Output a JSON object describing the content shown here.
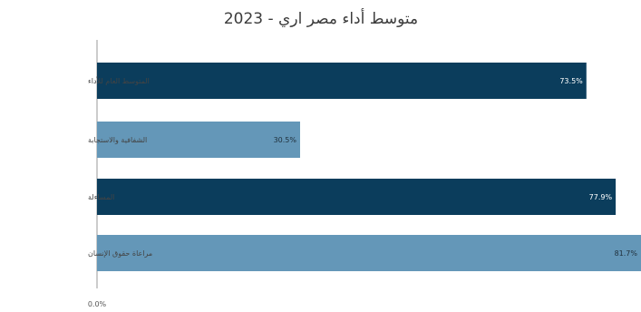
{
  "chart_data": {
    "type": "bar",
    "orientation": "horizontal",
    "title": "متوسط أداء مصر اري - 2023",
    "categories": [
      "المتوسط العام للأداء",
      "الشفافية والاستجابة",
      "المساءلة",
      "مراعاة حقوق الإنسان"
    ],
    "values": [
      73.5,
      30.5,
      77.9,
      81.7
    ],
    "value_labels": [
      "73.5%",
      "30.5%",
      "77.9%",
      "81.7%"
    ],
    "bar_colors": [
      "#0b3d5c",
      "#6497b8",
      "#0b3d5c",
      "#6497b8"
    ],
    "value_label_colors": [
      "#ffffff",
      "#1f2f3a",
      "#ffffff",
      "#1f2f3a"
    ],
    "x_ticks": [
      "0.0%"
    ],
    "xlim": [
      0,
      81.7
    ],
    "grid": false,
    "legend": "none"
  }
}
